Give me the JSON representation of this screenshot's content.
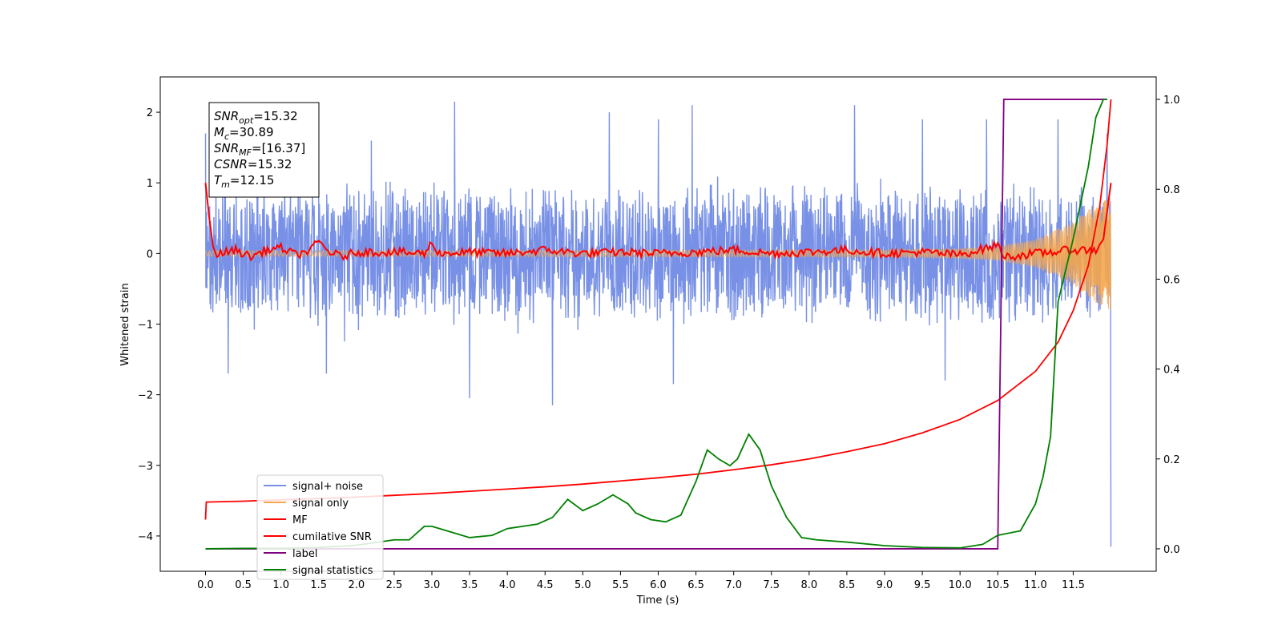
{
  "chart_data": {
    "type": "line",
    "xlabel": "Time (s)",
    "ylabel": "Whitened strain",
    "xlim": [
      -0.6,
      12.6
    ],
    "ylim": [
      -4.5,
      2.5
    ],
    "ylim_right": [
      -0.05,
      1.05
    ],
    "x_ticks": [
      0.0,
      0.5,
      1.0,
      1.5,
      2.0,
      2.5,
      3.0,
      3.5,
      4.0,
      4.5,
      5.0,
      5.5,
      6.0,
      6.5,
      7.0,
      7.5,
      8.0,
      8.5,
      9.0,
      9.5,
      10.0,
      10.5,
      11.0,
      11.5
    ],
    "x_tick_labels": [
      "0.0",
      "0.5",
      "1.0",
      "1.5",
      "2.0",
      "2.5",
      "3.0",
      "3.5",
      "4.0",
      "4.5",
      "5.0",
      "5.5",
      "6.0",
      "6.5",
      "7.0",
      "7.5",
      "8.0",
      "8.5",
      "9.0",
      "9.5",
      "10.0",
      "10.5",
      "11.0",
      "11.5"
    ],
    "y_ticks": [
      -4,
      -3,
      -2,
      -1,
      0,
      1,
      2
    ],
    "y_tick_labels": [
      "−4",
      "−3",
      "−2",
      "−1",
      "0",
      "1",
      "2"
    ],
    "y_right_ticks": [
      0.0,
      0.2,
      0.4,
      0.6,
      0.8,
      1.0
    ],
    "y_right_tick_labels": [
      "0.0",
      "0.2",
      "0.4",
      "0.6",
      "0.8",
      "1.0"
    ],
    "grid": false,
    "legend_position": "lower-left",
    "annotation": {
      "lines": [
        {
          "main": "SNR",
          "sub": "opt",
          "value": "=15.32"
        },
        {
          "main": "M",
          "sub": "c",
          "value": "=30.89"
        },
        {
          "main": "SNR",
          "sub": "MF",
          "value": "=[16.37]"
        },
        {
          "main": "CSNR",
          "sub": "",
          "value": "=15.32"
        },
        {
          "main": "T",
          "sub": "m",
          "value": "=12.15"
        }
      ]
    },
    "series": [
      {
        "name": "signal+ noise",
        "axis": "left",
        "color": "#7891e6",
        "kind": "noise_band",
        "x_range": [
          0.0,
          12.0
        ],
        "typical_min": -1.1,
        "typical_max": 1.2,
        "spikes": [
          {
            "x": 0.0,
            "y": 1.7
          },
          {
            "x": 0.3,
            "y": -1.7
          },
          {
            "x": 1.6,
            "y": -1.7
          },
          {
            "x": 2.2,
            "y": 1.6
          },
          {
            "x": 3.3,
            "y": 2.15
          },
          {
            "x": 3.5,
            "y": -2.05
          },
          {
            "x": 4.6,
            "y": -2.15
          },
          {
            "x": 5.35,
            "y": 2.0
          },
          {
            "x": 6.0,
            "y": 1.9
          },
          {
            "x": 6.2,
            "y": -1.85
          },
          {
            "x": 6.45,
            "y": 2.1
          },
          {
            "x": 8.6,
            "y": 2.1
          },
          {
            "x": 9.5,
            "y": 1.9
          },
          {
            "x": 9.8,
            "y": -1.8
          },
          {
            "x": 10.35,
            "y": 1.9
          },
          {
            "x": 11.3,
            "y": 1.9
          },
          {
            "x": 11.95,
            "y": 1.7
          },
          {
            "x": 12.0,
            "y": -4.15
          }
        ]
      },
      {
        "name": "signal only",
        "axis": "left",
        "color": "#f5a64d",
        "kind": "chirp",
        "x_range": [
          0.0,
          12.0
        ],
        "envelope": [
          [
            0.0,
            0.04
          ],
          [
            9.0,
            0.05
          ],
          [
            10.0,
            0.07
          ],
          [
            10.5,
            0.1
          ],
          [
            11.0,
            0.2
          ],
          [
            11.5,
            0.45
          ],
          [
            11.8,
            0.7
          ],
          [
            12.0,
            0.8
          ]
        ]
      },
      {
        "name": "MF",
        "axis": "left",
        "color": "#ff0000",
        "kind": "mf_trace",
        "points": [
          [
            0.0,
            1.0
          ],
          [
            0.02,
            0.8
          ],
          [
            0.05,
            0.5
          ],
          [
            0.1,
            0.1
          ],
          [
            0.15,
            -0.05
          ],
          [
            0.2,
            0.0
          ],
          [
            0.4,
            0.05
          ],
          [
            0.6,
            -0.05
          ],
          [
            0.8,
            0.05
          ],
          [
            1.0,
            0.08
          ],
          [
            1.2,
            -0.02
          ],
          [
            1.4,
            0.05
          ],
          [
            1.5,
            0.18
          ],
          [
            1.6,
            0.05
          ],
          [
            1.8,
            -0.05
          ],
          [
            2.0,
            0.02
          ],
          [
            2.5,
            0.02
          ],
          [
            2.9,
            0.0
          ],
          [
            3.0,
            0.15
          ],
          [
            3.1,
            0.0
          ],
          [
            3.5,
            0.02
          ],
          [
            4.0,
            0.0
          ],
          [
            4.5,
            0.05
          ],
          [
            5.0,
            0.0
          ],
          [
            5.5,
            0.02
          ],
          [
            6.0,
            0.0
          ],
          [
            6.5,
            0.02
          ],
          [
            7.0,
            0.05
          ],
          [
            7.5,
            0.0
          ],
          [
            8.0,
            0.02
          ],
          [
            8.5,
            0.05
          ],
          [
            9.0,
            0.0
          ],
          [
            9.5,
            0.02
          ],
          [
            10.0,
            -0.02
          ],
          [
            10.5,
            0.12
          ],
          [
            10.6,
            -0.05
          ],
          [
            11.0,
            0.0
          ],
          [
            11.5,
            0.05
          ],
          [
            11.8,
            0.05
          ],
          [
            11.9,
            0.2
          ],
          [
            11.95,
            0.6
          ],
          [
            12.0,
            1.0
          ]
        ]
      },
      {
        "name": "cumilative SNR",
        "axis": "right",
        "color": "#ff0000",
        "points": [
          [
            0.0,
            0.065
          ],
          [
            0.01,
            0.104
          ],
          [
            0.5,
            0.106
          ],
          [
            1.0,
            0.109
          ],
          [
            1.5,
            0.112
          ],
          [
            2.0,
            0.115
          ],
          [
            2.5,
            0.119
          ],
          [
            3.0,
            0.123
          ],
          [
            3.5,
            0.128
          ],
          [
            4.0,
            0.133
          ],
          [
            4.5,
            0.138
          ],
          [
            5.0,
            0.144
          ],
          [
            5.5,
            0.151
          ],
          [
            6.0,
            0.158
          ],
          [
            6.5,
            0.166
          ],
          [
            7.0,
            0.176
          ],
          [
            7.5,
            0.187
          ],
          [
            8.0,
            0.2
          ],
          [
            8.5,
            0.216
          ],
          [
            9.0,
            0.234
          ],
          [
            9.5,
            0.258
          ],
          [
            10.0,
            0.288
          ],
          [
            10.5,
            0.33
          ],
          [
            11.0,
            0.395
          ],
          [
            11.3,
            0.46
          ],
          [
            11.5,
            0.53
          ],
          [
            11.7,
            0.63
          ],
          [
            11.85,
            0.76
          ],
          [
            11.95,
            0.9
          ],
          [
            12.0,
            1.0
          ]
        ]
      },
      {
        "name": "label",
        "axis": "right",
        "color": "#800080",
        "points": [
          [
            0.0,
            0.0
          ],
          [
            10.5,
            0.0
          ],
          [
            10.58,
            1.0
          ],
          [
            11.95,
            1.0
          ]
        ]
      },
      {
        "name": "signal statistics",
        "axis": "right",
        "color": "#008000",
        "points": [
          [
            0.0,
            0.0
          ],
          [
            0.5,
            0.001
          ],
          [
            1.0,
            0.001
          ],
          [
            1.5,
            0.003
          ],
          [
            2.0,
            0.008
          ],
          [
            2.3,
            0.015
          ],
          [
            2.5,
            0.02
          ],
          [
            2.7,
            0.02
          ],
          [
            2.9,
            0.05
          ],
          [
            3.0,
            0.05
          ],
          [
            3.2,
            0.04
          ],
          [
            3.5,
            0.025
          ],
          [
            3.8,
            0.03
          ],
          [
            4.0,
            0.045
          ],
          [
            4.4,
            0.055
          ],
          [
            4.6,
            0.07
          ],
          [
            4.8,
            0.11
          ],
          [
            5.0,
            0.085
          ],
          [
            5.2,
            0.1
          ],
          [
            5.4,
            0.12
          ],
          [
            5.6,
            0.1
          ],
          [
            5.7,
            0.08
          ],
          [
            5.9,
            0.065
          ],
          [
            6.1,
            0.06
          ],
          [
            6.3,
            0.075
          ],
          [
            6.5,
            0.15
          ],
          [
            6.65,
            0.22
          ],
          [
            6.8,
            0.2
          ],
          [
            6.95,
            0.185
          ],
          [
            7.05,
            0.2
          ],
          [
            7.2,
            0.255
          ],
          [
            7.35,
            0.22
          ],
          [
            7.5,
            0.14
          ],
          [
            7.7,
            0.07
          ],
          [
            7.9,
            0.025
          ],
          [
            8.1,
            0.02
          ],
          [
            8.5,
            0.015
          ],
          [
            9.0,
            0.007
          ],
          [
            9.5,
            0.003
          ],
          [
            10.0,
            0.002
          ],
          [
            10.3,
            0.01
          ],
          [
            10.5,
            0.03
          ],
          [
            10.8,
            0.04
          ],
          [
            11.0,
            0.1
          ],
          [
            11.1,
            0.16
          ],
          [
            11.2,
            0.25
          ],
          [
            11.3,
            0.55
          ],
          [
            11.4,
            0.62
          ],
          [
            11.5,
            0.69
          ],
          [
            11.6,
            0.77
          ],
          [
            11.7,
            0.85
          ],
          [
            11.8,
            0.96
          ],
          [
            11.9,
            1.0
          ],
          [
            11.95,
            1.0
          ]
        ]
      }
    ]
  }
}
